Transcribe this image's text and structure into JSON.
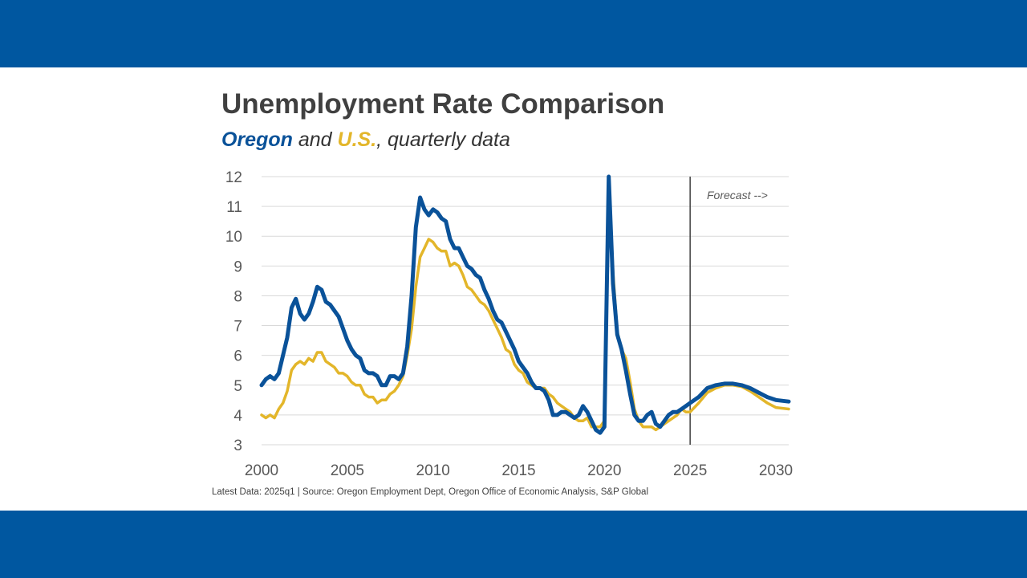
{
  "colors": {
    "band": "#0057a0",
    "oregon": "#0a5299",
    "us": "#e3b62a",
    "grid": "#d9d9d9",
    "forecast_line": "#404040"
  },
  "title": "Unemployment Rate Comparison",
  "subtitle": {
    "series1": "Oregon",
    "mid": " and ",
    "series2": "U.S.",
    "rest": ", quarterly data"
  },
  "source_note": "Latest Data: 2025q1  |  Source: Oregon Employment Dept, Oregon Office of Economic Analysis, S&P Global",
  "chart_data": {
    "type": "line",
    "title": "Unemployment Rate Comparison",
    "xlim": [
      2000,
      2030.75
    ],
    "ylim": [
      3,
      12
    ],
    "x_ticks": [
      "2000",
      "2005",
      "2010",
      "2015",
      "2020",
      "2025",
      "2030"
    ],
    "y_ticks": [
      "3",
      "4",
      "5",
      "6",
      "7",
      "8",
      "9",
      "10",
      "11",
      "12"
    ],
    "grid": "horizontal",
    "forecast_line": {
      "x": 2025.0,
      "label": "Forecast -->"
    },
    "series": [
      {
        "name": "Oregon",
        "color": "#0a5299",
        "points": [
          [
            2000.0,
            5.0
          ],
          [
            2000.25,
            5.2
          ],
          [
            2000.5,
            5.3
          ],
          [
            2000.75,
            5.2
          ],
          [
            2001.0,
            5.4
          ],
          [
            2001.25,
            6.0
          ],
          [
            2001.5,
            6.6
          ],
          [
            2001.75,
            7.6
          ],
          [
            2002.0,
            7.9
          ],
          [
            2002.25,
            7.4
          ],
          [
            2002.5,
            7.2
          ],
          [
            2002.75,
            7.4
          ],
          [
            2003.0,
            7.8
          ],
          [
            2003.25,
            8.3
          ],
          [
            2003.5,
            8.2
          ],
          [
            2003.75,
            7.8
          ],
          [
            2004.0,
            7.7
          ],
          [
            2004.25,
            7.5
          ],
          [
            2004.5,
            7.3
          ],
          [
            2004.75,
            6.9
          ],
          [
            2005.0,
            6.5
          ],
          [
            2005.25,
            6.2
          ],
          [
            2005.5,
            6.0
          ],
          [
            2005.75,
            5.9
          ],
          [
            2006.0,
            5.5
          ],
          [
            2006.25,
            5.4
          ],
          [
            2006.5,
            5.4
          ],
          [
            2006.75,
            5.3
          ],
          [
            2007.0,
            5.0
          ],
          [
            2007.25,
            5.0
          ],
          [
            2007.5,
            5.3
          ],
          [
            2007.75,
            5.3
          ],
          [
            2008.0,
            5.2
          ],
          [
            2008.25,
            5.4
          ],
          [
            2008.5,
            6.3
          ],
          [
            2008.75,
            8.0
          ],
          [
            2009.0,
            10.3
          ],
          [
            2009.25,
            11.3
          ],
          [
            2009.5,
            10.9
          ],
          [
            2009.75,
            10.7
          ],
          [
            2010.0,
            10.9
          ],
          [
            2010.25,
            10.8
          ],
          [
            2010.5,
            10.6
          ],
          [
            2010.75,
            10.5
          ],
          [
            2011.0,
            9.9
          ],
          [
            2011.25,
            9.6
          ],
          [
            2011.5,
            9.6
          ],
          [
            2011.75,
            9.3
          ],
          [
            2012.0,
            9.0
          ],
          [
            2012.25,
            8.9
          ],
          [
            2012.5,
            8.7
          ],
          [
            2012.75,
            8.6
          ],
          [
            2013.0,
            8.2
          ],
          [
            2013.25,
            7.9
          ],
          [
            2013.5,
            7.5
          ],
          [
            2013.75,
            7.2
          ],
          [
            2014.0,
            7.1
          ],
          [
            2014.25,
            6.8
          ],
          [
            2014.5,
            6.5
          ],
          [
            2014.75,
            6.2
          ],
          [
            2015.0,
            5.8
          ],
          [
            2015.25,
            5.6
          ],
          [
            2015.5,
            5.4
          ],
          [
            2015.75,
            5.1
          ],
          [
            2016.0,
            4.9
          ],
          [
            2016.25,
            4.9
          ],
          [
            2016.5,
            4.8
          ],
          [
            2016.75,
            4.5
          ],
          [
            2017.0,
            4.0
          ],
          [
            2017.25,
            4.0
          ],
          [
            2017.5,
            4.1
          ],
          [
            2017.75,
            4.1
          ],
          [
            2018.0,
            4.0
          ],
          [
            2018.25,
            3.9
          ],
          [
            2018.5,
            4.0
          ],
          [
            2018.75,
            4.3
          ],
          [
            2019.0,
            4.1
          ],
          [
            2019.25,
            3.8
          ],
          [
            2019.5,
            3.5
          ],
          [
            2019.75,
            3.4
          ],
          [
            2020.0,
            3.6
          ],
          [
            2020.25,
            12.0
          ],
          [
            2020.5,
            8.4
          ],
          [
            2020.75,
            6.7
          ],
          [
            2021.0,
            6.2
          ],
          [
            2021.25,
            5.5
          ],
          [
            2021.5,
            4.7
          ],
          [
            2021.75,
            4.0
          ],
          [
            2022.0,
            3.8
          ],
          [
            2022.25,
            3.8
          ],
          [
            2022.5,
            4.0
          ],
          [
            2022.75,
            4.1
          ],
          [
            2023.0,
            3.7
          ],
          [
            2023.25,
            3.6
          ],
          [
            2023.5,
            3.8
          ],
          [
            2023.75,
            4.0
          ],
          [
            2024.0,
            4.1
          ],
          [
            2024.25,
            4.1
          ],
          [
            2024.5,
            4.2
          ],
          [
            2024.75,
            4.3
          ],
          [
            2025.0,
            4.4
          ],
          [
            2025.5,
            4.6
          ],
          [
            2026.0,
            4.9
          ],
          [
            2026.5,
            5.0
          ],
          [
            2027.0,
            5.05
          ],
          [
            2027.5,
            5.05
          ],
          [
            2028.0,
            5.0
          ],
          [
            2028.5,
            4.9
          ],
          [
            2029.0,
            4.75
          ],
          [
            2029.5,
            4.6
          ],
          [
            2030.0,
            4.5
          ],
          [
            2030.75,
            4.45
          ]
        ]
      },
      {
        "name": "U.S.",
        "color": "#e3b62a",
        "points": [
          [
            2000.0,
            4.0
          ],
          [
            2000.25,
            3.9
          ],
          [
            2000.5,
            4.0
          ],
          [
            2000.75,
            3.9
          ],
          [
            2001.0,
            4.2
          ],
          [
            2001.25,
            4.4
          ],
          [
            2001.5,
            4.8
          ],
          [
            2001.75,
            5.5
          ],
          [
            2002.0,
            5.7
          ],
          [
            2002.25,
            5.8
          ],
          [
            2002.5,
            5.7
          ],
          [
            2002.75,
            5.9
          ],
          [
            2003.0,
            5.8
          ],
          [
            2003.25,
            6.1
          ],
          [
            2003.5,
            6.1
          ],
          [
            2003.75,
            5.8
          ],
          [
            2004.0,
            5.7
          ],
          [
            2004.25,
            5.6
          ],
          [
            2004.5,
            5.4
          ],
          [
            2004.75,
            5.4
          ],
          [
            2005.0,
            5.3
          ],
          [
            2005.25,
            5.1
          ],
          [
            2005.5,
            5.0
          ],
          [
            2005.75,
            5.0
          ],
          [
            2006.0,
            4.7
          ],
          [
            2006.25,
            4.6
          ],
          [
            2006.5,
            4.6
          ],
          [
            2006.75,
            4.4
          ],
          [
            2007.0,
            4.5
          ],
          [
            2007.25,
            4.5
          ],
          [
            2007.5,
            4.7
          ],
          [
            2007.75,
            4.8
          ],
          [
            2008.0,
            5.0
          ],
          [
            2008.25,
            5.3
          ],
          [
            2008.5,
            6.0
          ],
          [
            2008.75,
            6.9
          ],
          [
            2009.0,
            8.3
          ],
          [
            2009.25,
            9.3
          ],
          [
            2009.5,
            9.6
          ],
          [
            2009.75,
            9.9
          ],
          [
            2010.0,
            9.8
          ],
          [
            2010.25,
            9.6
          ],
          [
            2010.5,
            9.5
          ],
          [
            2010.75,
            9.5
          ],
          [
            2011.0,
            9.0
          ],
          [
            2011.25,
            9.1
          ],
          [
            2011.5,
            9.0
          ],
          [
            2011.75,
            8.7
          ],
          [
            2012.0,
            8.3
          ],
          [
            2012.25,
            8.2
          ],
          [
            2012.5,
            8.0
          ],
          [
            2012.75,
            7.8
          ],
          [
            2013.0,
            7.7
          ],
          [
            2013.25,
            7.5
          ],
          [
            2013.5,
            7.2
          ],
          [
            2013.75,
            6.9
          ],
          [
            2014.0,
            6.6
          ],
          [
            2014.25,
            6.2
          ],
          [
            2014.5,
            6.1
          ],
          [
            2014.75,
            5.7
          ],
          [
            2015.0,
            5.5
          ],
          [
            2015.25,
            5.4
          ],
          [
            2015.5,
            5.1
          ],
          [
            2015.75,
            5.0
          ],
          [
            2016.0,
            4.9
          ],
          [
            2016.25,
            4.9
          ],
          [
            2016.5,
            4.9
          ],
          [
            2016.75,
            4.7
          ],
          [
            2017.0,
            4.6
          ],
          [
            2017.25,
            4.4
          ],
          [
            2017.5,
            4.3
          ],
          [
            2017.75,
            4.2
          ],
          [
            2018.0,
            4.1
          ],
          [
            2018.25,
            3.9
          ],
          [
            2018.5,
            3.8
          ],
          [
            2018.75,
            3.8
          ],
          [
            2019.0,
            3.9
          ],
          [
            2019.25,
            3.6
          ],
          [
            2019.5,
            3.6
          ],
          [
            2019.75,
            3.6
          ],
          [
            2020.0,
            3.8
          ],
          [
            2020.25,
            11.9
          ],
          [
            2020.5,
            8.8
          ],
          [
            2020.75,
            6.8
          ],
          [
            2021.0,
            6.2
          ],
          [
            2021.25,
            5.9
          ],
          [
            2021.5,
            5.1
          ],
          [
            2021.75,
            4.2
          ],
          [
            2022.0,
            3.8
          ],
          [
            2022.25,
            3.6
          ],
          [
            2022.5,
            3.6
          ],
          [
            2022.75,
            3.6
          ],
          [
            2023.0,
            3.5
          ],
          [
            2023.25,
            3.6
          ],
          [
            2023.5,
            3.7
          ],
          [
            2023.75,
            3.8
          ],
          [
            2024.0,
            3.9
          ],
          [
            2024.25,
            4.0
          ],
          [
            2024.5,
            4.2
          ],
          [
            2024.75,
            4.1
          ],
          [
            2025.0,
            4.1
          ],
          [
            2025.5,
            4.4
          ],
          [
            2026.0,
            4.75
          ],
          [
            2026.5,
            4.9
          ],
          [
            2027.0,
            5.0
          ],
          [
            2027.5,
            5.0
          ],
          [
            2028.0,
            4.95
          ],
          [
            2028.5,
            4.8
          ],
          [
            2029.0,
            4.6
          ],
          [
            2029.5,
            4.4
          ],
          [
            2030.0,
            4.25
          ],
          [
            2030.75,
            4.2
          ]
        ]
      }
    ]
  }
}
